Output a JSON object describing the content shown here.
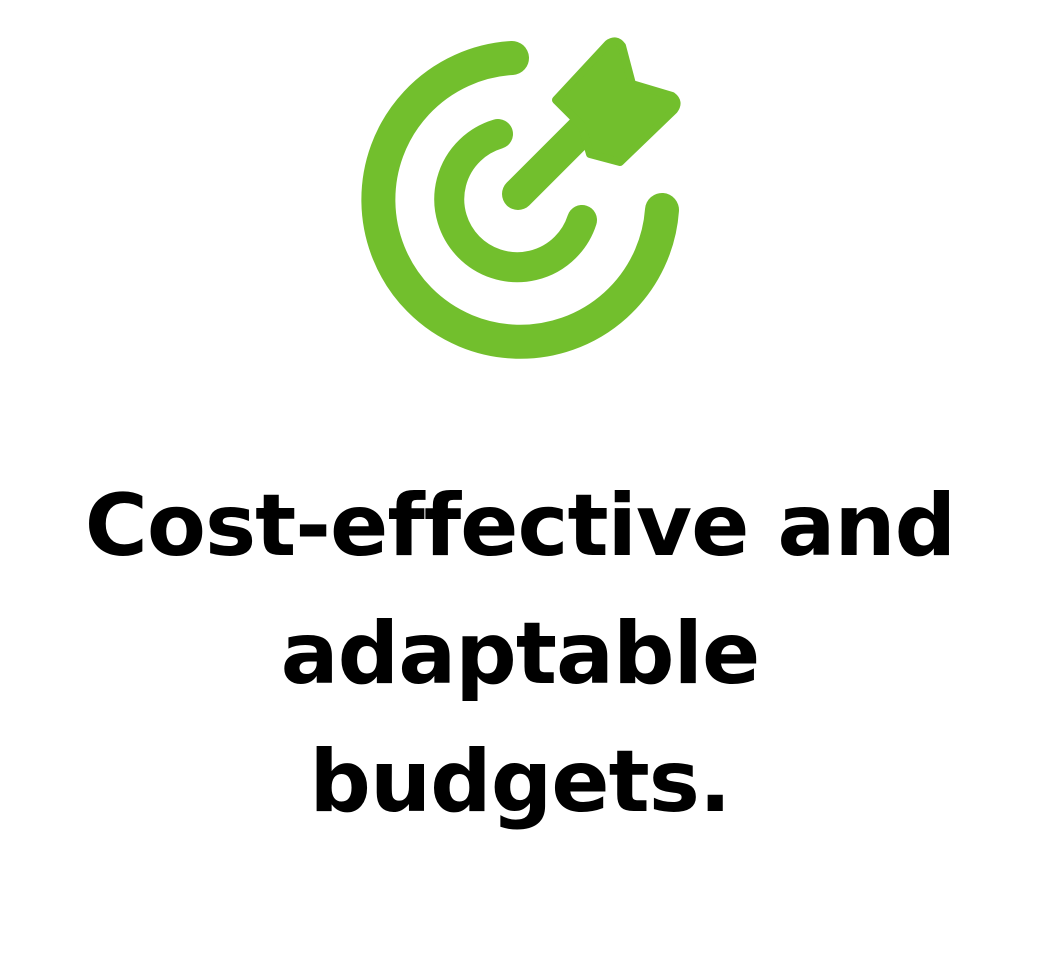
{
  "feature": {
    "icon": "target-arrow-icon",
    "accent_color": "#72BF2D",
    "headline_lines": [
      "Cost-effective and",
      "adaptable",
      "budgets."
    ]
  }
}
